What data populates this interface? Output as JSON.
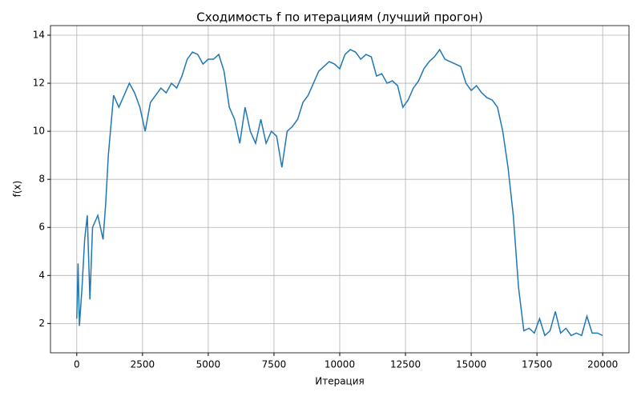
{
  "chart_data": {
    "type": "line",
    "title": "Сходимость f по итерациям (лучший прогон)",
    "xlabel": "Итерация",
    "ylabel": "f(x)",
    "x": [
      0,
      50,
      100,
      200,
      300,
      400,
      500,
      600,
      800,
      1000,
      1100,
      1200,
      1400,
      1600,
      1800,
      2000,
      2200,
      2400,
      2600,
      2800,
      3000,
      3200,
      3400,
      3600,
      3800,
      4000,
      4200,
      4400,
      4600,
      4800,
      5000,
      5200,
      5400,
      5600,
      5800,
      6000,
      6200,
      6400,
      6600,
      6800,
      7000,
      7200,
      7400,
      7600,
      7800,
      8000,
      8200,
      8400,
      8600,
      8800,
      9000,
      9200,
      9400,
      9600,
      9800,
      10000,
      10200,
      10400,
      10600,
      10800,
      11000,
      11200,
      11400,
      11600,
      11800,
      12000,
      12200,
      12400,
      12600,
      12800,
      13000,
      13200,
      13400,
      13600,
      13800,
      14000,
      14200,
      14400,
      14600,
      14800,
      15000,
      15200,
      15400,
      15600,
      15800,
      16000,
      16200,
      16400,
      16600,
      16800,
      17000,
      17200,
      17400,
      17600,
      17800,
      18000,
      18200,
      18400,
      18600,
      18800,
      19000,
      19200,
      19400,
      19600,
      19800,
      20000
    ],
    "series": [
      {
        "name": "f(x)",
        "color": "#1f77b4",
        "values": [
          2.2,
          4.5,
          1.9,
          3.5,
          5.5,
          6.5,
          3.0,
          6.0,
          6.5,
          5.5,
          7.0,
          9.0,
          11.5,
          11.0,
          11.5,
          12.0,
          11.6,
          11.0,
          10.0,
          11.2,
          11.5,
          11.8,
          11.6,
          12.0,
          11.8,
          12.3,
          13.0,
          13.3,
          13.2,
          12.8,
          13.0,
          13.0,
          13.2,
          12.5,
          11.0,
          10.5,
          9.5,
          11.0,
          10.0,
          9.5,
          10.5,
          9.5,
          10.0,
          9.8,
          8.5,
          10.0,
          10.2,
          10.5,
          11.2,
          11.5,
          12.0,
          12.5,
          12.7,
          12.9,
          12.8,
          12.6,
          13.2,
          13.4,
          13.3,
          13.0,
          13.2,
          13.1,
          12.3,
          12.4,
          12.0,
          12.1,
          11.9,
          11.0,
          11.3,
          11.8,
          12.1,
          12.6,
          12.9,
          13.1,
          13.4,
          13.0,
          12.9,
          12.8,
          12.7,
          12.0,
          11.7,
          11.9,
          11.6,
          11.4,
          11.3,
          11.0,
          10.0,
          8.5,
          6.5,
          3.5,
          1.7,
          1.8,
          1.6,
          2.2,
          1.5,
          1.7,
          2.5,
          1.6,
          1.8,
          1.5,
          1.6,
          1.5,
          2.3,
          1.6,
          1.6,
          1.5
        ]
      }
    ],
    "xlim": [
      -1000,
      21000
    ],
    "ylim": [
      0.78,
      14.4
    ],
    "xticks": [
      0,
      2500,
      5000,
      7500,
      10000,
      12500,
      15000,
      17500,
      20000
    ],
    "yticks": [
      2,
      4,
      6,
      8,
      10,
      12,
      14
    ],
    "grid": true
  }
}
